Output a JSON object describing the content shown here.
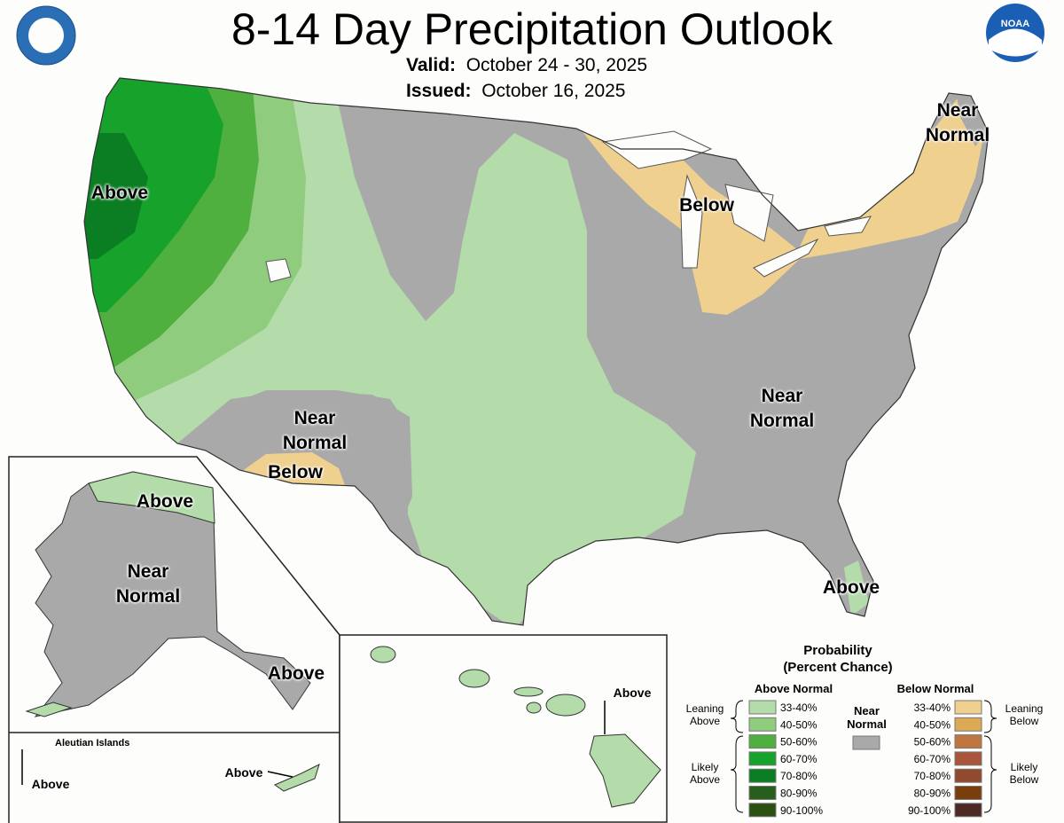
{
  "header": {
    "title": "8-14 Day Precipitation Outlook",
    "valid_label": "Valid:",
    "valid": "October 24 - 30, 2025",
    "issued_label": "Issued:",
    "issued": "October 16, 2025",
    "logo": "NOAA"
  },
  "map_labels": [
    "Above",
    "Near Normal",
    "Below",
    "Near Normal",
    "Near Normal",
    "Below",
    "Above",
    "Above",
    "Near Normal",
    "Above",
    "Above",
    "Above",
    "Above"
  ],
  "insets": {
    "aleutian_title": "Aleutian Islands"
  },
  "legend": {
    "title": "Probability",
    "subtitle": "(Percent Chance)",
    "above": {
      "heading": "Above Normal",
      "leaning": "Leaning Above",
      "likely": "Likely Above",
      "bins": [
        {
          "label": "33-40%",
          "color": "#b3dcaa"
        },
        {
          "label": "40-50%",
          "color": "#8fcc7e"
        },
        {
          "label": "50-60%",
          "color": "#4fb03f"
        },
        {
          "label": "60-70%",
          "color": "#17a22c"
        },
        {
          "label": "70-80%",
          "color": "#0b7d22"
        },
        {
          "label": "80-90%",
          "color": "#285e1c"
        },
        {
          "label": "90-100%",
          "color": "#2c4f12"
        }
      ]
    },
    "near": {
      "label": "Near Normal",
      "color": "#a9a9a9"
    },
    "below": {
      "heading": "Below Normal",
      "leaning": "Leaning Below",
      "likely": "Likely Below",
      "bins": [
        {
          "label": "33-40%",
          "color": "#f0d08f"
        },
        {
          "label": "40-50%",
          "color": "#dcaa55"
        },
        {
          "label": "50-60%",
          "color": "#c0773f"
        },
        {
          "label": "60-70%",
          "color": "#a9553b"
        },
        {
          "label": "70-80%",
          "color": "#924a2f"
        },
        {
          "label": "80-90%",
          "color": "#7a3e0c"
        },
        {
          "label": "90-100%",
          "color": "#4e2a26"
        }
      ]
    }
  }
}
